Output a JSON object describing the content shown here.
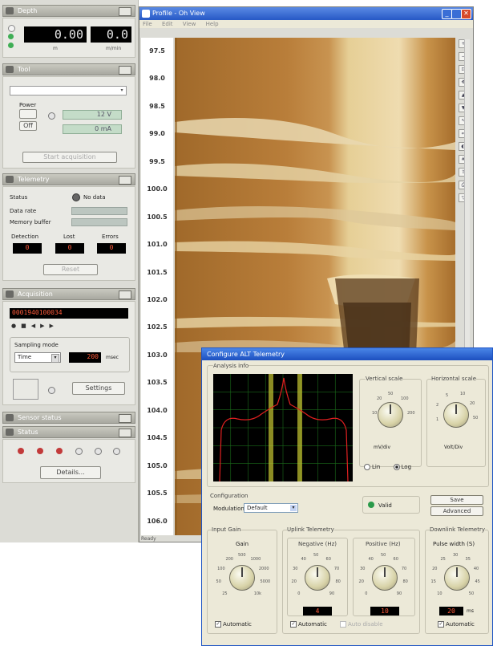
{
  "left_panel": {
    "meter": {
      "title": "Depth",
      "value_left": "0.00",
      "value_right": "0.0",
      "unit_left": "m",
      "unit_right": "m/min"
    },
    "tool": {
      "title": "Tool",
      "power_label": "Power",
      "off_label": "Off",
      "voltage_value": "12 V",
      "current_value": "0 mA",
      "action_button": "Start acquisition"
    },
    "telemetry": {
      "title": "Telemetry",
      "status_label": "Status",
      "status_value": "No data",
      "row1_label": "Data rate",
      "row2_label": "Memory buffer",
      "col1": "Detection",
      "col2": "Lost",
      "col3": "Errors",
      "val1": "0",
      "val2": "0",
      "val3": "0",
      "button": "Reset"
    },
    "acquisition": {
      "title": "Acquisition",
      "counter": "0001940100034",
      "sampling_label": "Sampling mode",
      "sampling_value": "Time",
      "interval_value": "200",
      "interval_unit": "msec",
      "settings_button": "Settings"
    },
    "extra_title": "Sensor status",
    "status_title": "Status",
    "details_button": "Details..."
  },
  "image_window": {
    "title": "Profile - Oh View",
    "menu": [
      "File",
      "Edit",
      "View",
      "Help"
    ],
    "depth_ticks": [
      "97.5",
      "98.0",
      "98.5",
      "99.0",
      "99.5",
      "100.0",
      "100.5",
      "101.0",
      "101.5",
      "102.0",
      "102.5",
      "103.0",
      "103.5",
      "104.0",
      "104.5",
      "105.0",
      "105.5",
      "106.0"
    ],
    "status_text": "Ready",
    "toolbar_icons": [
      "zoom-in-icon",
      "zoom-out-icon",
      "fit-icon",
      "pan-icon",
      "up-icon",
      "down-icon",
      "cursor-icon",
      "measure-icon",
      "color-icon",
      "grid-icon",
      "export-icon",
      "print-icon",
      "filter-icon"
    ]
  },
  "dialog": {
    "title": "Configure ALT Telemetry",
    "analysis_label": "Analysis info",
    "vertical_scale_label": "Vertical scale",
    "vertical_scale_unit": "mV/div",
    "horizontal_scale_label": "Horizontal scale",
    "horizontal_scale_unit": "Volt/Div",
    "lin_label": "Lin",
    "log_label": "Log",
    "configuration_label": "Configuration",
    "modulation_label": "Modulation",
    "modulation_value": "Default",
    "valid_label": "Valid",
    "save_button": "Save",
    "advanced_button": "Advanced",
    "input_gain_label": "Input Gain",
    "gain_label": "Gain",
    "uplink_label": "Uplink Telemetry",
    "negative_label": "Negative (Hz)",
    "positive_label": "Positive (Hz)",
    "downlink_label": "Downlink Telemetry",
    "pulse_label": "Pulse width (S)",
    "neg_value": "4",
    "pos_value": "10",
    "pulse_value": "20",
    "pulse_unit": "ms",
    "automatic": "Automatic",
    "auto_disable": "Auto disable",
    "gain_ticks": [
      "25",
      "50",
      "100",
      "200",
      "500",
      "1000",
      "2000",
      "5000",
      "10k"
    ],
    "freq_ticks": [
      "0",
      "20",
      "30",
      "40",
      "50",
      "60",
      "70",
      "80",
      "90"
    ],
    "pulse_ticks": [
      "10",
      "15",
      "20",
      "25",
      "30",
      "35",
      "40",
      "45",
      "50"
    ],
    "vscale_ticks": [
      "10",
      "20",
      "50",
      "100",
      "200"
    ],
    "hscale_ticks": [
      "1",
      "2",
      "5",
      "10",
      "20",
      "50"
    ]
  },
  "colors": {
    "accent": "#2658c6",
    "scope_bg": "#000000",
    "scope_grid": "#1a6a1a",
    "scope_trace": "#e02020",
    "scope_band": "#c8c832",
    "core_dark": "#8a5a1e",
    "core_light": "#efdcb0"
  }
}
